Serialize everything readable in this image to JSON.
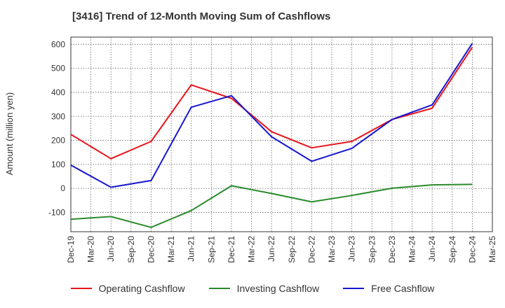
{
  "chart_data": {
    "type": "line",
    "title": "[3416]  Trend of 12-Month Moving Sum of Cashflows",
    "ylabel": "Amount (million yen)",
    "xlabel": "",
    "ylim": [
      -180,
      630
    ],
    "yticks": [
      -100,
      0,
      100,
      200,
      300,
      400,
      500,
      600
    ],
    "categories": [
      "Dec-19",
      "Mar-20",
      "Jun-20",
      "Sep-20",
      "Dec-20",
      "Mar-21",
      "Jun-21",
      "Sep-21",
      "Dec-21",
      "Mar-22",
      "Jun-22",
      "Sep-22",
      "Dec-22",
      "Mar-23",
      "Jun-23",
      "Sep-23",
      "Dec-23",
      "Mar-24",
      "Jun-24",
      "Sep-24",
      "Dec-24",
      "Mar-25"
    ],
    "grid": true,
    "legend_position": "bottom",
    "series": [
      {
        "name": "Operating Cashflow",
        "color": "#e8141b",
        "points": [
          {
            "x": "Dec-19",
            "y": 225
          },
          {
            "x": "Jun-20",
            "y": 124
          },
          {
            "x": "Dec-20",
            "y": 196
          },
          {
            "x": "Jun-21",
            "y": 431
          },
          {
            "x": "Dec-21",
            "y": 375
          },
          {
            "x": "Jun-22",
            "y": 236
          },
          {
            "x": "Dec-22",
            "y": 169
          },
          {
            "x": "Jun-23",
            "y": 196
          },
          {
            "x": "Dec-23",
            "y": 287
          },
          {
            "x": "Jun-24",
            "y": 334
          },
          {
            "x": "Dec-24",
            "y": 588
          }
        ]
      },
      {
        "name": "Investing Cashflow",
        "color": "#2b8a2b",
        "points": [
          {
            "x": "Dec-19",
            "y": -128
          },
          {
            "x": "Jun-20",
            "y": -117
          },
          {
            "x": "Dec-20",
            "y": -162
          },
          {
            "x": "Jun-21",
            "y": -92
          },
          {
            "x": "Dec-21",
            "y": 11
          },
          {
            "x": "Jun-22",
            "y": -21
          },
          {
            "x": "Dec-22",
            "y": -56
          },
          {
            "x": "Jun-23",
            "y": -29
          },
          {
            "x": "Dec-23",
            "y": 1
          },
          {
            "x": "Jun-24",
            "y": 15
          },
          {
            "x": "Dec-24",
            "y": 17
          }
        ]
      },
      {
        "name": "Free Cashflow",
        "color": "#1616d0",
        "points": [
          {
            "x": "Dec-19",
            "y": 97
          },
          {
            "x": "Jun-20",
            "y": 5
          },
          {
            "x": "Dec-20",
            "y": 33
          },
          {
            "x": "Jun-21",
            "y": 338
          },
          {
            "x": "Dec-21",
            "y": 386
          },
          {
            "x": "Jun-22",
            "y": 215
          },
          {
            "x": "Dec-22",
            "y": 113
          },
          {
            "x": "Jun-23",
            "y": 167
          },
          {
            "x": "Dec-23",
            "y": 287
          },
          {
            "x": "Jun-24",
            "y": 348
          },
          {
            "x": "Dec-24",
            "y": 604
          }
        ]
      }
    ]
  }
}
